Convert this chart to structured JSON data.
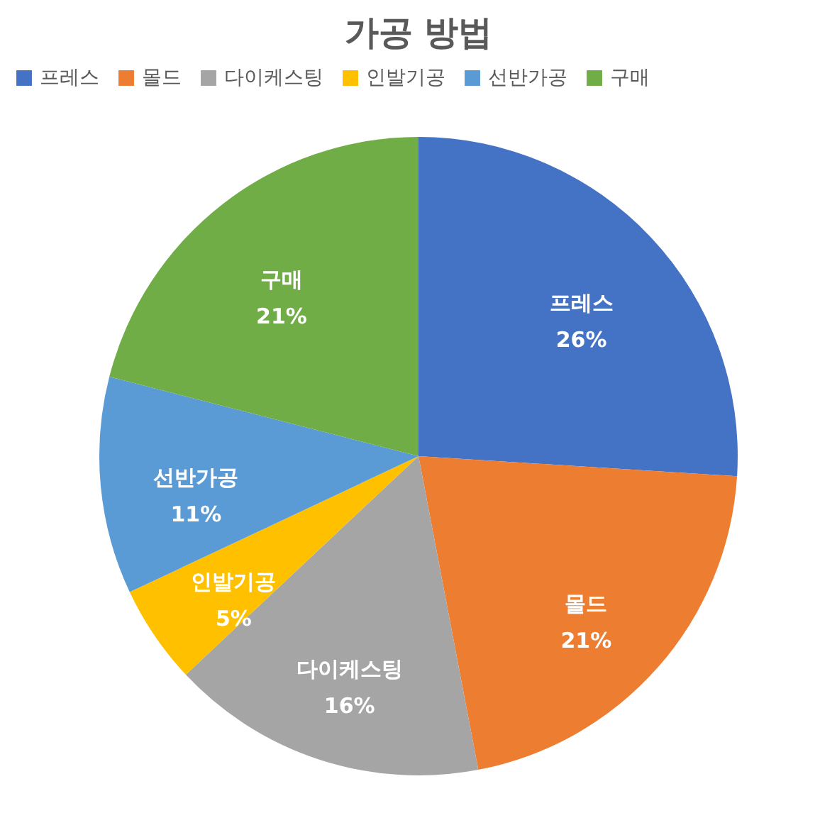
{
  "chart_data": {
    "type": "pie",
    "title": "가공 방법",
    "categories": [
      "프레스",
      "몰드",
      "다이케스팅",
      "인발기공",
      "선반가공",
      "구매"
    ],
    "values": [
      26,
      21,
      16,
      5,
      11,
      21
    ],
    "colors": [
      "#4472c4",
      "#ed7d31",
      "#a5a5a5",
      "#ffc000",
      "#5b9bd5",
      "#70ad47"
    ],
    "value_labels": [
      "26%",
      "21%",
      "16%",
      "5%",
      "11%",
      "21%"
    ],
    "legend": "top"
  }
}
